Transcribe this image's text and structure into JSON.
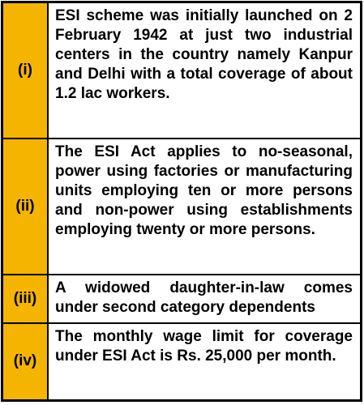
{
  "table": {
    "rows": [
      [
        "(i)",
        "ESI scheme was initially launched on 2 February 1942 at just two industrial centers in the country namely Kanpur and Delhi with a total coverage of about 1.2 lac workers."
      ],
      [
        "(ii)",
        "The ESI Act applies to no-seasonal, power using factories or manufacturing units employing ten or more persons and non-power using establishments employing twenty or more persons."
      ],
      [
        "(iii)",
        "A widowed daughter-in-law comes under second category dependents"
      ],
      [
        "(iv)",
        "The monthly wage limit for coverage under ESI Act is Rs. 25,000 per month."
      ]
    ]
  }
}
